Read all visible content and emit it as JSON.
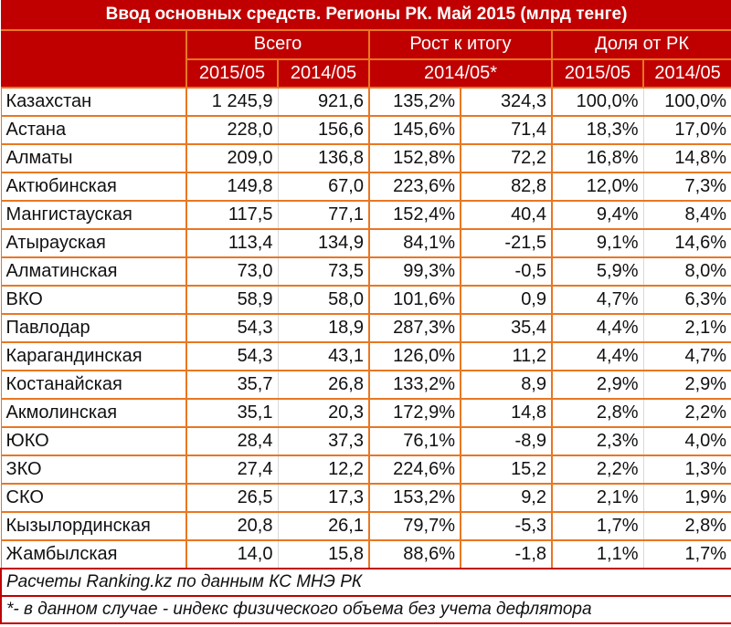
{
  "title": "Ввод основных средств. Регионы РК. Май 2015 (млрд тенге)",
  "header": {
    "groups": [
      {
        "label": "Всего"
      },
      {
        "label": "Рост к итогу"
      },
      {
        "label": "Доля от РК"
      }
    ],
    "sub": {
      "total_2015": "2015/05",
      "total_2014": "2014/05",
      "growth": "2014/05*",
      "share_2015": "2015/05",
      "share_2014": "2014/05"
    }
  },
  "rows": [
    {
      "region": "Казахстан",
      "v2015": "1 245,9",
      "v2014": "921,6",
      "growth_pct": "135,2%",
      "growth_abs": "324,3",
      "share2015": "100,0%",
      "share2014": "100,0%"
    },
    {
      "region": "Астана",
      "v2015": "228,0",
      "v2014": "156,6",
      "growth_pct": "145,6%",
      "growth_abs": "71,4",
      "share2015": "18,3%",
      "share2014": "17,0%"
    },
    {
      "region": "Алматы",
      "v2015": "209,0",
      "v2014": "136,8",
      "growth_pct": "152,8%",
      "growth_abs": "72,2",
      "share2015": "16,8%",
      "share2014": "14,8%"
    },
    {
      "region": "Актюбинская",
      "v2015": "149,8",
      "v2014": "67,0",
      "growth_pct": "223,6%",
      "growth_abs": "82,8",
      "share2015": "12,0%",
      "share2014": "7,3%"
    },
    {
      "region": "Мангистауская",
      "v2015": "117,5",
      "v2014": "77,1",
      "growth_pct": "152,4%",
      "growth_abs": "40,4",
      "share2015": "9,4%",
      "share2014": "8,4%"
    },
    {
      "region": "Атырауская",
      "v2015": "113,4",
      "v2014": "134,9",
      "growth_pct": "84,1%",
      "growth_abs": "-21,5",
      "share2015": "9,1%",
      "share2014": "14,6%"
    },
    {
      "region": "Алматинская",
      "v2015": "73,0",
      "v2014": "73,5",
      "growth_pct": "99,3%",
      "growth_abs": "-0,5",
      "share2015": "5,9%",
      "share2014": "8,0%"
    },
    {
      "region": "ВКО",
      "v2015": "58,9",
      "v2014": "58,0",
      "growth_pct": "101,6%",
      "growth_abs": "0,9",
      "share2015": "4,7%",
      "share2014": "6,3%"
    },
    {
      "region": "Павлодар",
      "v2015": "54,3",
      "v2014": "18,9",
      "growth_pct": "287,3%",
      "growth_abs": "35,4",
      "share2015": "4,4%",
      "share2014": "2,1%"
    },
    {
      "region": "Карагандинская",
      "v2015": "54,3",
      "v2014": "43,1",
      "growth_pct": "126,0%",
      "growth_abs": "11,2",
      "share2015": "4,4%",
      "share2014": "4,7%"
    },
    {
      "region": "Костанайская",
      "v2015": "35,7",
      "v2014": "26,8",
      "growth_pct": "133,2%",
      "growth_abs": "8,9",
      "share2015": "2,9%",
      "share2014": "2,9%"
    },
    {
      "region": "Акмолинская",
      "v2015": "35,1",
      "v2014": "20,3",
      "growth_pct": "172,9%",
      "growth_abs": "14,8",
      "share2015": "2,8%",
      "share2014": "2,2%"
    },
    {
      "region": "ЮКО",
      "v2015": "28,4",
      "v2014": "37,3",
      "growth_pct": "76,1%",
      "growth_abs": "-8,9",
      "share2015": "2,3%",
      "share2014": "4,0%"
    },
    {
      "region": "ЗКО",
      "v2015": "27,4",
      "v2014": "12,2",
      "growth_pct": "224,6%",
      "growth_abs": "15,2",
      "share2015": "2,2%",
      "share2014": "1,3%"
    },
    {
      "region": "СКО",
      "v2015": "26,5",
      "v2014": "17,3",
      "growth_pct": "153,2%",
      "growth_abs": "9,2",
      "share2015": "2,1%",
      "share2014": "1,9%"
    },
    {
      "region": "Кызылординская",
      "v2015": "20,8",
      "v2014": "26,1",
      "growth_pct": "79,7%",
      "growth_abs": "-5,3",
      "share2015": "1,7%",
      "share2014": "2,8%"
    },
    {
      "region": "Жамбылская",
      "v2015": "14,0",
      "v2014": "15,8",
      "growth_pct": "88,6%",
      "growth_abs": "-1,8",
      "share2015": "1,1%",
      "share2014": "1,7%"
    }
  ],
  "footer": {
    "source": "Расчеты Ranking.kz по данным КС МНЭ РК",
    "note": "*- в данном случае - индекс физического объема без учета дефлятора"
  },
  "colors": {
    "header_bg": "#c00000",
    "grid_orange": "#e87722",
    "footer_border": "#c00000"
  }
}
